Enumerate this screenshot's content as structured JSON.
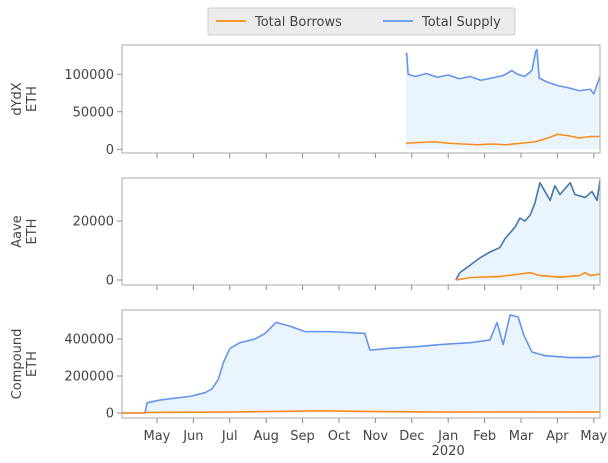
{
  "chart_data": [
    {
      "type": "line",
      "ylabel": "dYdX\nETH",
      "ylim": [
        -5000,
        139000
      ],
      "yticks": [
        0,
        50000,
        100000
      ],
      "fill_supply": true,
      "series": [
        {
          "name": "Total Borrows",
          "color": "#ff8c1a",
          "x": [
            6.84,
            7.2,
            7.6,
            8.0,
            8.4,
            8.8,
            9.2,
            9.6,
            10.0,
            10.4,
            10.8,
            11.0,
            11.3,
            11.6,
            11.9,
            12.17
          ],
          "values": [
            8000,
            9000,
            10000,
            8000,
            7000,
            6000,
            7000,
            6000,
            8000,
            10000,
            16000,
            20000,
            18000,
            15000,
            17000,
            17000
          ]
        },
        {
          "name": "Total Supply",
          "color": "#6495ed",
          "x": [
            6.84,
            6.86,
            6.9,
            7.1,
            7.4,
            7.7,
            8.0,
            8.3,
            8.6,
            8.9,
            9.2,
            9.5,
            9.75,
            9.9,
            10.1,
            10.3,
            10.4,
            10.44,
            10.5,
            10.7,
            11.0,
            11.3,
            11.6,
            11.9,
            12.0,
            12.17
          ],
          "values": [
            125000,
            128000,
            100000,
            97000,
            101000,
            96000,
            99000,
            94000,
            97000,
            92000,
            95000,
            98000,
            105000,
            100000,
            97000,
            105000,
            130000,
            133000,
            95000,
            90000,
            85000,
            82000,
            78000,
            80000,
            74000,
            97000
          ]
        }
      ]
    },
    {
      "type": "line",
      "ylabel": "Aave\nETH",
      "ylim": [
        -1700,
        34600
      ],
      "yticks": [
        0,
        20000
      ],
      "fill_supply": true,
      "series": [
        {
          "name": "Total Borrows",
          "color": "#ff8c1a",
          "x": [
            8.21,
            8.6,
            9.42,
            9.97,
            10.25,
            10.52,
            11.07,
            11.62,
            11.76,
            11.9,
            12.17
          ],
          "values": [
            0,
            800,
            1200,
            2000,
            2500,
            1500,
            1000,
            1500,
            2500,
            1500,
            2000
          ]
        },
        {
          "name": "Total Supply",
          "color": "#4478a8",
          "x": [
            8.21,
            8.32,
            8.6,
            8.87,
            9.15,
            9.42,
            9.56,
            9.7,
            9.84,
            9.97,
            10.11,
            10.25,
            10.38,
            10.52,
            10.66,
            10.8,
            10.93,
            11.07,
            11.21,
            11.35,
            11.48,
            11.76,
            11.95,
            12.09,
            12.17
          ],
          "values": [
            0,
            2500,
            5000,
            7500,
            9500,
            11000,
            14000,
            16000,
            18000,
            21000,
            20000,
            22000,
            26000,
            33000,
            30000,
            27000,
            32000,
            29000,
            31000,
            33000,
            29000,
            28000,
            30000,
            27000,
            34000
          ]
        }
      ]
    },
    {
      "type": "line",
      "ylabel": "Compound\nETH",
      "ylim": [
        -27000,
        557000
      ],
      "yticks": [
        0,
        200000,
        400000
      ],
      "fill_supply": true,
      "xlim": [
        -0.96,
        12.17
      ],
      "xticks": [
        {
          "value": 0,
          "label": "May"
        },
        {
          "value": 1,
          "label": "Jun"
        },
        {
          "value": 2,
          "label": "Jul"
        },
        {
          "value": 3,
          "label": "Aug"
        },
        {
          "value": 4,
          "label": "Sep"
        },
        {
          "value": 5,
          "label": "Oct"
        },
        {
          "value": 6,
          "label": "Nov"
        },
        {
          "value": 7,
          "label": "Dec"
        },
        {
          "value": 8,
          "label": "Jan\n2020"
        },
        {
          "value": 9,
          "label": "Feb"
        },
        {
          "value": 10,
          "label": "Mar"
        },
        {
          "value": 11,
          "label": "Apr"
        },
        {
          "value": 12,
          "label": "May"
        }
      ],
      "series": [
        {
          "name": "Total Borrows",
          "color": "#ff8c1a",
          "x": [
            -0.96,
            -0.33,
            -0.27,
            2.0,
            3.0,
            4.5,
            6.0,
            8.0,
            10.0,
            12.17
          ],
          "values": [
            0,
            0,
            3000,
            5000,
            8000,
            12000,
            8000,
            5000,
            6000,
            5000
          ]
        },
        {
          "name": "Total Supply",
          "color": "#6495ed",
          "x": [
            -0.96,
            -0.33,
            -0.27,
            0.08,
            0.49,
            0.91,
            1.32,
            1.51,
            1.68,
            1.84,
            2.01,
            2.28,
            2.69,
            2.97,
            3.27,
            3.65,
            4.07,
            4.75,
            5.71,
            5.85,
            6.4,
            7.23,
            7.77,
            8.6,
            9.15,
            9.34,
            9.51,
            9.7,
            9.92,
            10.08,
            10.3,
            10.66,
            11.35,
            11.9,
            12.17
          ],
          "values": [
            0,
            0,
            55000,
            70000,
            80000,
            90000,
            110000,
            130000,
            180000,
            280000,
            350000,
            380000,
            400000,
            430000,
            490000,
            470000,
            440000,
            440000,
            430000,
            340000,
            350000,
            360000,
            370000,
            380000,
            395000,
            490000,
            370000,
            530000,
            520000,
            420000,
            330000,
            310000,
            300000,
            300000,
            310000
          ]
        }
      ]
    }
  ]
}
